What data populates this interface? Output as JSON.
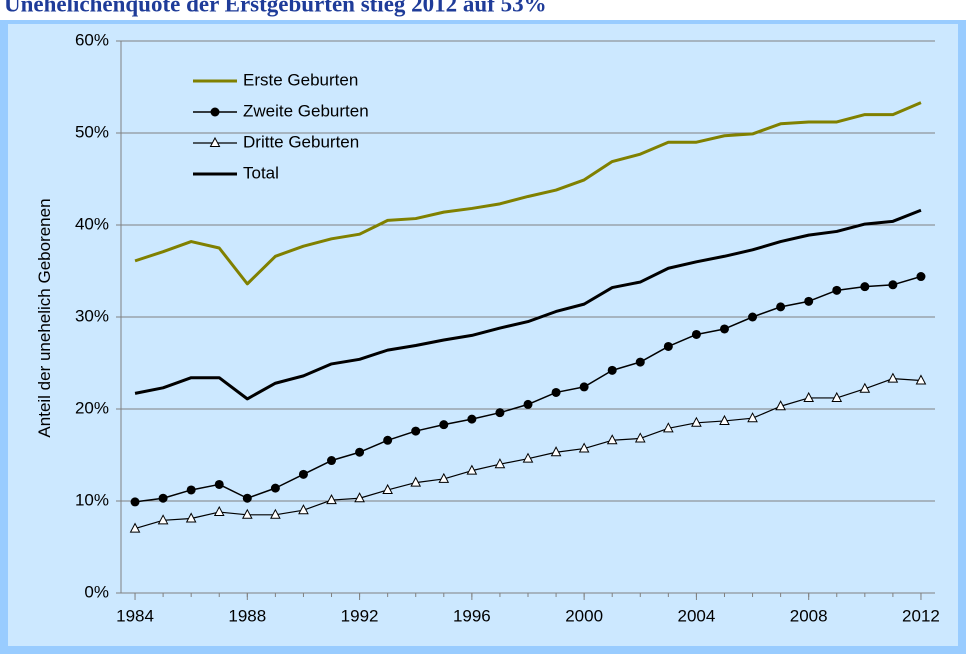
{
  "chart_data": {
    "type": "line",
    "title": "Unehelichenquote der Erstgeburten stieg 2012 auf 53%",
    "ylabel": "Anteil der unehelich Geborenen",
    "x": [
      1984,
      1985,
      1986,
      1987,
      1988,
      1989,
      1990,
      1991,
      1992,
      1993,
      1994,
      1995,
      1996,
      1997,
      1998,
      1999,
      2000,
      2001,
      2002,
      2003,
      2004,
      2005,
      2006,
      2007,
      2008,
      2009,
      2010,
      2011,
      2012
    ],
    "series": [
      {
        "name": "Erste Geburten",
        "color": "#808000",
        "width": 3,
        "marker": "none",
        "values": [
          36.1,
          37.1,
          38.2,
          37.5,
          33.6,
          36.6,
          37.7,
          38.5,
          39.0,
          40.5,
          40.7,
          41.4,
          41.8,
          42.3,
          43.1,
          43.8,
          44.9,
          46.9,
          47.7,
          49.0,
          49.0,
          49.7,
          49.9,
          51.0,
          51.2,
          51.2,
          52.0,
          52.0,
          53.3
        ]
      },
      {
        "name": "Zweite Geburten",
        "color": "#000000",
        "width": 1.5,
        "marker": "circle",
        "values": [
          9.9,
          10.3,
          11.2,
          11.8,
          10.3,
          11.4,
          12.9,
          14.4,
          15.3,
          16.6,
          17.6,
          18.3,
          18.9,
          19.6,
          20.5,
          21.8,
          22.4,
          24.2,
          25.1,
          26.8,
          28.1,
          28.7,
          30.0,
          31.1,
          31.7,
          32.9,
          33.3,
          33.5,
          34.4
        ]
      },
      {
        "name": "Dritte Geburten",
        "color": "#000000",
        "width": 1.2,
        "marker": "triangle",
        "values": [
          7.0,
          7.9,
          8.1,
          8.8,
          8.5,
          8.5,
          9.0,
          10.1,
          10.3,
          11.2,
          12.0,
          12.4,
          13.3,
          14.0,
          14.6,
          15.3,
          15.7,
          16.6,
          16.8,
          17.9,
          18.5,
          18.7,
          19.0,
          20.3,
          21.2,
          21.2,
          22.2,
          23.3,
          23.1
        ]
      },
      {
        "name": "Total",
        "color": "#000000",
        "width": 3,
        "marker": "none",
        "values": [
          21.7,
          22.3,
          23.4,
          23.4,
          21.1,
          22.8,
          23.6,
          24.9,
          25.4,
          26.4,
          26.9,
          27.5,
          28.0,
          28.8,
          29.5,
          30.6,
          31.4,
          33.2,
          33.8,
          35.3,
          36.0,
          36.6,
          37.3,
          38.2,
          38.9,
          39.3,
          40.1,
          40.4,
          41.6
        ]
      }
    ],
    "xlim": [
      1983.5,
      2012.5
    ],
    "xticks": [
      1984,
      1988,
      1992,
      1996,
      2000,
      2004,
      2008,
      2012
    ],
    "ylim": [
      0,
      60
    ],
    "yticks": [
      {
        "value": 0,
        "label": "0%"
      },
      {
        "value": 10,
        "label": "10%"
      },
      {
        "value": 20,
        "label": "20%"
      },
      {
        "value": 30,
        "label": "30%"
      },
      {
        "value": 40,
        "label": "40%"
      },
      {
        "value": 50,
        "label": "50%"
      },
      {
        "value": 60,
        "label": "60%"
      }
    ],
    "grid": true,
    "legend": "upper left"
  }
}
